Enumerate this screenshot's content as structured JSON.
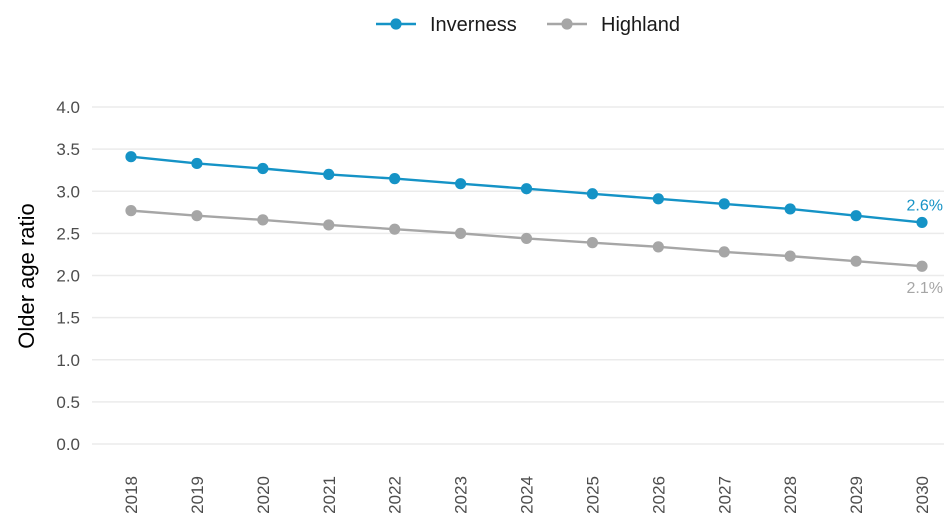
{
  "chart_data": {
    "type": "line",
    "title": "",
    "xlabel": "",
    "ylabel": "Older age ratio",
    "ylim": [
      0,
      4
    ],
    "yticks": [
      "0.0",
      "0.5",
      "1.0",
      "1.5",
      "2.0",
      "2.5",
      "3.0",
      "3.5",
      "4.0"
    ],
    "categories": [
      "2018",
      "2019",
      "2020",
      "2021",
      "2022",
      "2023",
      "2024",
      "2025",
      "2026",
      "2027",
      "2028",
      "2029",
      "2030"
    ],
    "grid": true,
    "legend_position": "top",
    "series": [
      {
        "name": "Inverness",
        "color": "#1593c6",
        "values": [
          3.41,
          3.33,
          3.27,
          3.2,
          3.15,
          3.09,
          3.03,
          2.97,
          2.91,
          2.85,
          2.79,
          2.71,
          2.63
        ],
        "end_label": "2.6%"
      },
      {
        "name": "Highland",
        "color": "#a6a6a6",
        "values": [
          2.77,
          2.71,
          2.66,
          2.6,
          2.55,
          2.5,
          2.44,
          2.39,
          2.34,
          2.28,
          2.23,
          2.17,
          2.11
        ],
        "end_label": "2.1%"
      }
    ]
  }
}
